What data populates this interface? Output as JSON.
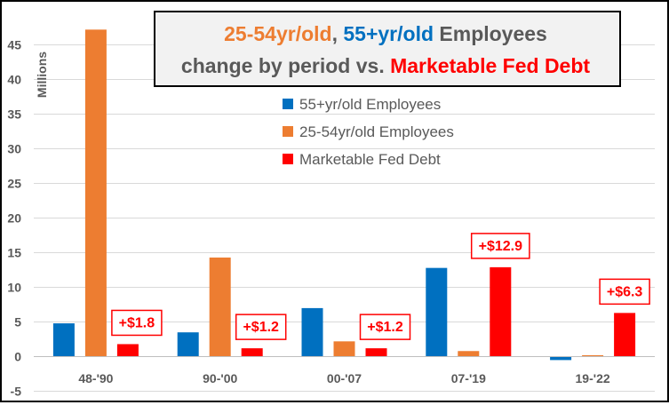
{
  "colors": {
    "series_55plus": "#0070C0",
    "series_25_54": "#ED7D31",
    "series_debt": "#FF0000",
    "axis_text": "#595959",
    "gridline": "#D9D9D9",
    "title_dark": "#595959"
  },
  "title": {
    "line1": [
      {
        "text": "25-54yr/old",
        "color": "#ED7D31"
      },
      {
        "text": ", ",
        "color": "#595959"
      },
      {
        "text": "55+yr/old",
        "color": "#0070C0"
      },
      {
        "text": " Employees",
        "color": "#595959"
      }
    ],
    "line2": [
      {
        "text": "change by period vs. ",
        "color": "#595959"
      },
      {
        "text": "Marketable Fed Debt",
        "color": "#FF0000"
      }
    ]
  },
  "chart_data": {
    "type": "bar",
    "title": "25-54yr/old, 55+yr/old Employees change by period vs. Marketable Fed Debt",
    "ylabel": "Millions",
    "xlabel": "",
    "ylim": [
      -5,
      50
    ],
    "yticks": [
      -5,
      0,
      5,
      10,
      15,
      20,
      25,
      30,
      35,
      40,
      45
    ],
    "grid": true,
    "legend_position": "top-center",
    "categories": [
      "48-'90",
      "90-'00",
      "00-'07",
      "07-'19",
      "19-'22"
    ],
    "series": [
      {
        "name": "55+yr/old Employees",
        "color": "#0070C0",
        "values": [
          4.8,
          3.5,
          7.0,
          12.8,
          -0.5
        ]
      },
      {
        "name": "25-54yr/old Employees",
        "color": "#ED7D31",
        "values": [
          47.2,
          14.3,
          2.2,
          0.8,
          0.2
        ]
      },
      {
        "name": "Marketable Fed Debt",
        "color": "#FF0000",
        "values": [
          1.8,
          1.2,
          1.2,
          12.9,
          6.3
        ]
      }
    ],
    "data_labels": [
      "+$1.8",
      "+$1.2",
      "+$1.2",
      "+$12.9",
      "+$6.3"
    ]
  }
}
